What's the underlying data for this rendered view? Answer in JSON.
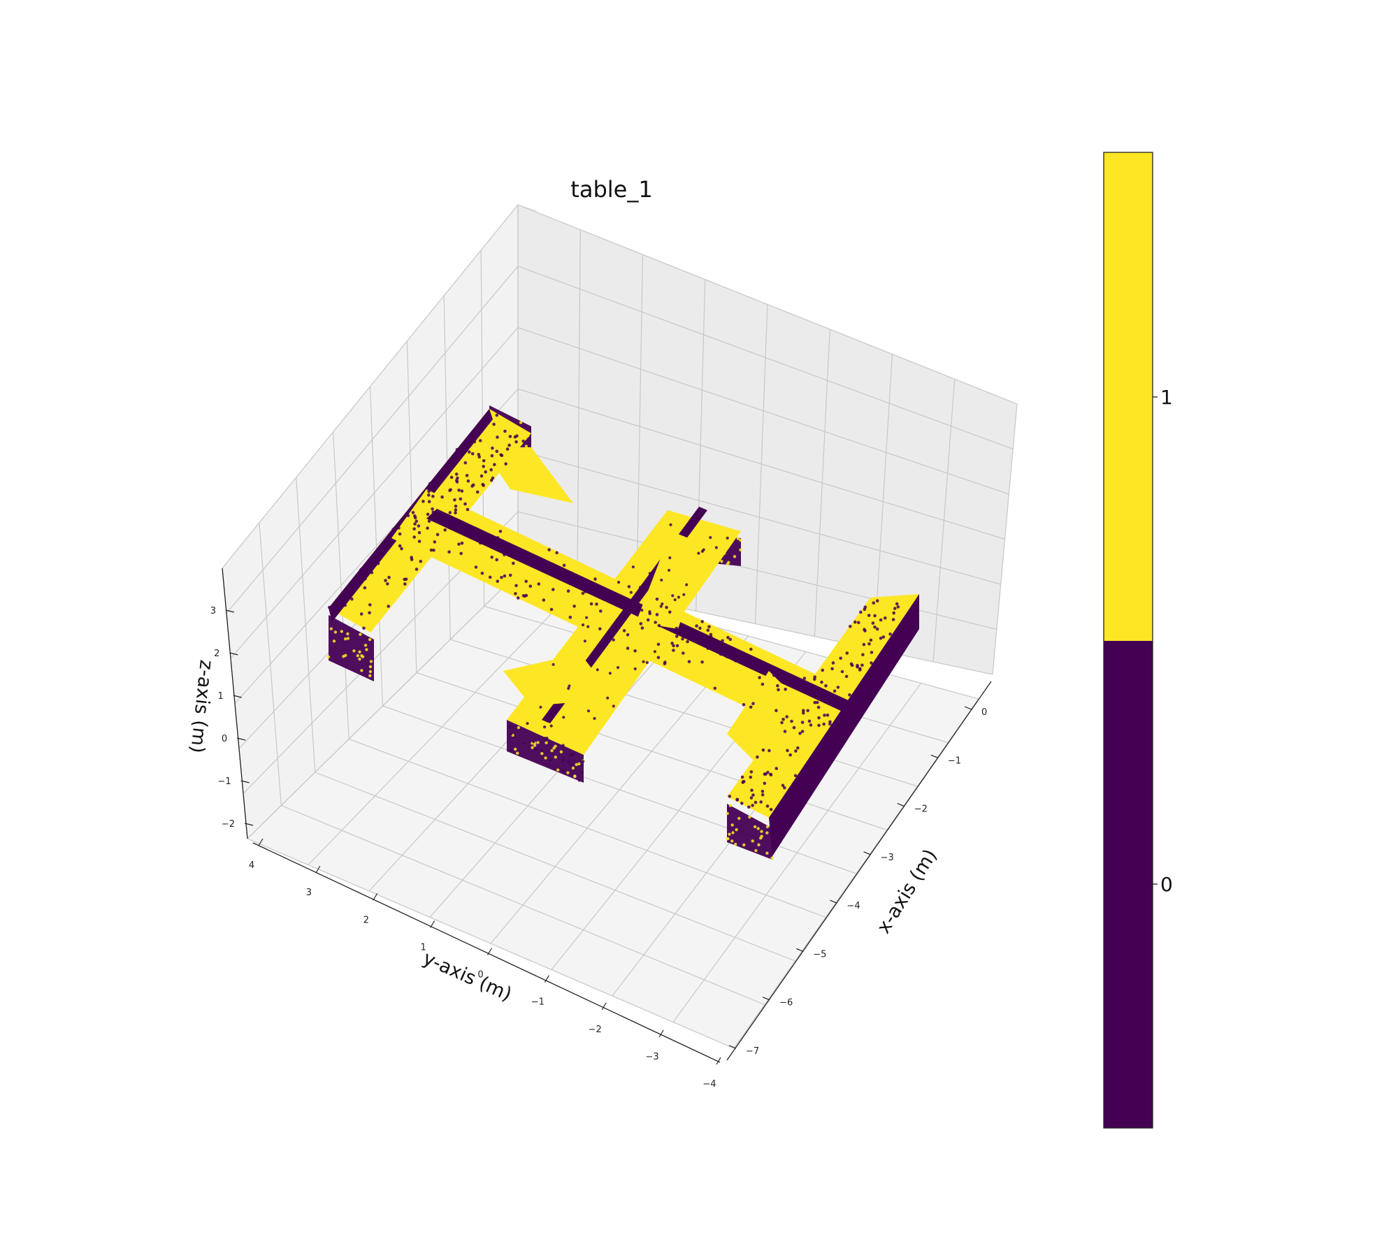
{
  "chart_data": {
    "type": "scatter",
    "title": "table_1",
    "xlabel": "x-axis (m)",
    "ylabel": "y-axis (m)",
    "zlabel": "z-axis (m)",
    "x_ticks": [
      "0",
      "−1",
      "−2",
      "−3",
      "−4",
      "−5",
      "−6",
      "−7"
    ],
    "y_ticks": [
      "4",
      "3",
      "2",
      "1",
      "0",
      "−1",
      "−2",
      "−3",
      "−4"
    ],
    "z_ticks": [
      "3",
      "2",
      "1",
      "0",
      "−1",
      "−2"
    ],
    "xlim": [
      -7.5,
      0.5
    ],
    "ylim": [
      -4,
      4.2
    ],
    "zlim": [
      -2.2,
      3.4
    ],
    "grid": true,
    "colorbar": {
      "ticks": [
        "1",
        "0"
      ],
      "colors": {
        "0": "#440154",
        "1": "#fde725"
      }
    },
    "point_cloud": {
      "classes": [
        0,
        1
      ],
      "description_free": true
    }
  }
}
